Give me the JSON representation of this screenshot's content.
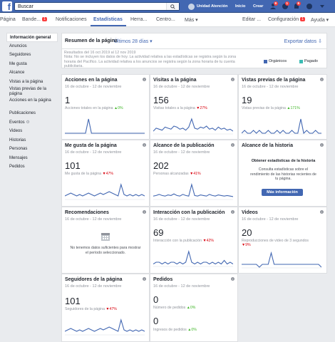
{
  "topbar": {
    "search_placeholder": "Buscar",
    "profile_name": "Unidad Atención",
    "nav": [
      "Inicio",
      "Crear"
    ],
    "friend_badge": "9",
    "msg_badge": "1",
    "notif_badge": "6"
  },
  "subnav": {
    "items": [
      "Página",
      "Bande...",
      "Notificaciones",
      "Estadísticas",
      "Herra...",
      "Centro...",
      "Más ▾",
      "Editar ...",
      "Configuración",
      "Ayuda ▾"
    ],
    "bande_badge": "1",
    "config_badge": "1"
  },
  "sidebar": [
    "Información general",
    "Anuncios",
    "Seguidores",
    "Me gusta",
    "Alcance",
    "Vistas a la página",
    "Vistas previas de la página",
    "Acciones en la página",
    "Publicaciones",
    "Eventos",
    "Videos",
    "Historias",
    "Personas",
    "Mensajes",
    "Pedidos"
  ],
  "header": {
    "title": "Resumen de la página",
    "range": "Últimos 28 días ▾",
    "export": "Exportar datos ⇩"
  },
  "note": {
    "line1": "Resultados del 16 oct 2019 al 12 nov 2019",
    "line2": "Nota: No se incluyen los datos de hoy. La actividad relativa a las estadísticas se registra según la zona horaria del Pacífico. La actividad relativa a los anuncios se registra según la zona horaria de tu cuenta publicitaria."
  },
  "legend": {
    "organic": "Orgánicos",
    "paid": "Pagado",
    "organic_color": "#4267b2",
    "paid_color": "#3cbcb4"
  },
  "period": "16 de octubre - 12 de noviembre",
  "cards": [
    {
      "title": "Acciones en la página",
      "value": "1",
      "desc": "Acciones totales en la página",
      "delta": "▲0%",
      "dir": "up"
    },
    {
      "title": "Visitas a la página",
      "value": "156",
      "desc": "Visitas totales a la página",
      "delta": "▼27%",
      "dir": "dn"
    },
    {
      "title": "Vistas previas de la página",
      "value": "19",
      "desc": "Vistas previas de la página",
      "delta": "▲171%",
      "dir": "up"
    },
    {
      "title": "Me gusta de la página",
      "value": "101",
      "desc": "Me gusta de la página",
      "delta": "▼47%",
      "dir": "dn"
    },
    {
      "title": "Alcance de la publicación",
      "value": "202",
      "desc": "Personas alcanzadas",
      "delta": "▼41%",
      "dir": "dn"
    },
    {
      "title": "Recomendaciones",
      "value": "",
      "desc": "",
      "delta": "",
      "dir": ""
    },
    {
      "title": "Interacción con la publicación",
      "value": "69",
      "desc": "Interacción con la publicación",
      "delta": "▼42%",
      "dir": "dn"
    },
    {
      "title": "Videos",
      "value": "20",
      "desc": "Reproducciones de video de 3 segundos",
      "delta": "▼9%",
      "dir": "dn"
    },
    {
      "title": "Seguidores de la página",
      "value": "101",
      "desc": "Seguidores de la página",
      "delta": "▼47%",
      "dir": "dn"
    },
    {
      "title": "Pedidos",
      "value": "0",
      "desc": "Número de pedidos",
      "delta": "▲0%",
      "dir": "up",
      "value2": "0",
      "desc2": "Ingresos de pedidos",
      "delta2": "▲0%"
    }
  ],
  "historia": {
    "title": "Alcance de la historia",
    "heading": "Obtener estadísticas de la historia",
    "text": "Consulta estadísticas sobre el rendimiento de las historias recientes de tu página.",
    "button": "Más información"
  },
  "recomendaciones_empty": "No tenemos datos suficientes para mostrar el período seleccionado.",
  "series": {
    "acciones": [
      0,
      0,
      0,
      0,
      0,
      0,
      0,
      0,
      1,
      0,
      0,
      0,
      0,
      0,
      0,
      0,
      0,
      0,
      0,
      0,
      0,
      0,
      0,
      0,
      0,
      0,
      0,
      0
    ],
    "visitas": [
      2,
      5,
      4,
      3,
      6,
      5,
      4,
      7,
      6,
      4,
      5,
      3,
      6,
      14,
      5,
      4,
      6,
      5,
      7,
      4,
      5,
      3,
      6,
      4,
      5,
      3,
      4,
      2
    ],
    "previas": [
      0,
      1,
      0,
      0,
      1,
      0,
      1,
      0,
      0,
      1,
      0,
      0,
      1,
      0,
      1,
      0,
      0,
      1,
      0,
      0,
      5,
      0,
      1,
      0,
      0,
      1,
      0,
      0
    ],
    "megusta": [
      2,
      3,
      4,
      3,
      2,
      3,
      2,
      3,
      4,
      3,
      2,
      3,
      4,
      3,
      4,
      5,
      4,
      3,
      2,
      10,
      3,
      2,
      3,
      2,
      3,
      2,
      3,
      2
    ],
    "alcance": [
      5,
      6,
      8,
      6,
      5,
      7,
      6,
      9,
      6,
      5,
      8,
      6,
      5,
      26,
      6,
      5,
      7,
      6,
      5,
      8,
      6,
      5,
      7,
      6,
      5,
      6,
      5,
      4
    ],
    "interaccion": [
      1,
      2,
      2,
      1,
      2,
      1,
      2,
      2,
      1,
      2,
      1,
      2,
      8,
      2,
      1,
      2,
      1,
      2,
      2,
      1,
      2,
      1,
      2,
      1,
      3,
      1,
      2,
      1
    ],
    "videos": [
      1,
      1,
      1,
      1,
      1,
      1,
      0,
      1,
      1,
      1,
      5,
      1,
      1,
      1,
      1,
      1,
      1,
      1,
      1,
      1,
      1,
      1,
      1,
      1,
      1,
      1,
      1,
      0
    ],
    "seguidores": [
      2,
      3,
      4,
      3,
      2,
      3,
      2,
      3,
      4,
      3,
      2,
      3,
      4,
      3,
      4,
      5,
      4,
      3,
      2,
      10,
      3,
      2,
      3,
      2,
      3,
      2,
      3,
      2
    ],
    "pedidos": [
      0,
      0,
      0,
      0,
      0,
      0,
      0,
      0,
      0,
      0,
      0,
      0,
      0,
      0,
      0,
      0,
      0,
      0,
      0,
      0,
      0,
      0,
      0,
      0,
      0,
      0,
      0,
      0
    ]
  }
}
